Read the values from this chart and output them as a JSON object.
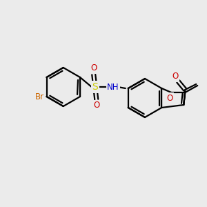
{
  "background_color": "#ebebeb",
  "atom_colors": {
    "C": "#000000",
    "N": "#0000cc",
    "O": "#cc0000",
    "S": "#cccc00",
    "Br": "#cc6600"
  },
  "figsize": [
    3.0,
    3.0
  ],
  "dpi": 100,
  "lw": 1.6
}
